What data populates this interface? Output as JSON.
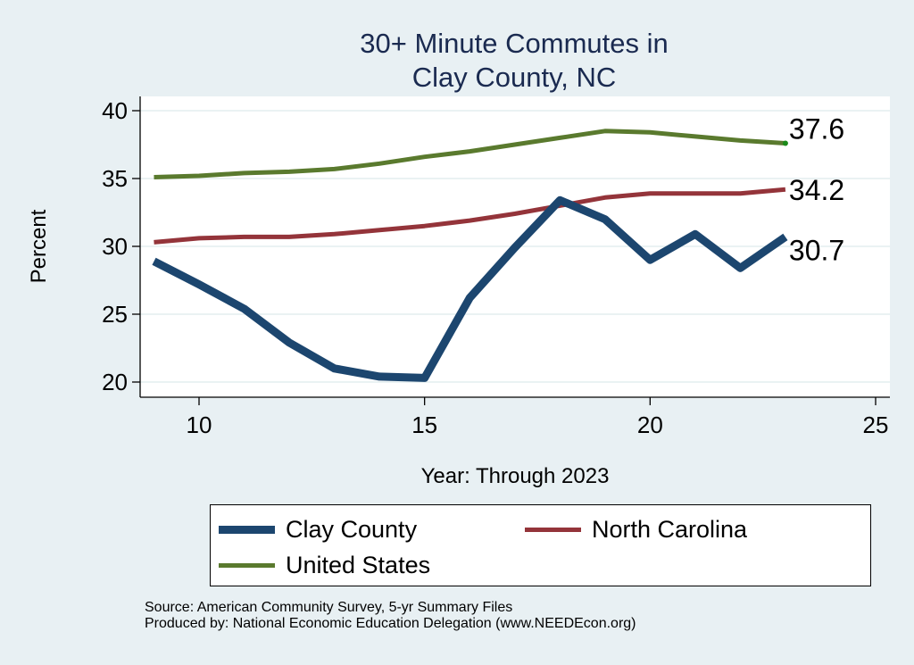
{
  "chart_data": {
    "type": "line",
    "title": [
      "30+ Minute Commutes in",
      "Clay County, NC"
    ],
    "xlabel": "Year: Through 2023",
    "ylabel": "Percent",
    "xlim": [
      8.7,
      25.3
    ],
    "ylim": [
      19,
      41
    ],
    "xticks": [
      10,
      15,
      20,
      25
    ],
    "yticks": [
      20,
      25,
      30,
      35,
      40
    ],
    "grid": "horizontal",
    "legend_position": "bottom",
    "x": [
      9,
      10,
      11,
      12,
      13,
      14,
      15,
      16,
      17,
      18,
      19,
      20,
      21,
      22,
      23
    ],
    "series": [
      {
        "name": "Clay County",
        "color": "#1c466f",
        "width": "thick",
        "values": [
          28.9,
          27.2,
          25.4,
          22.9,
          21.0,
          20.4,
          20.3,
          26.2,
          29.9,
          33.4,
          32.0,
          29.0,
          30.9,
          28.4,
          30.7
        ],
        "end_label": "30.7"
      },
      {
        "name": "North Carolina",
        "color": "#94343a",
        "width": "medium",
        "values": [
          30.3,
          30.6,
          30.7,
          30.7,
          30.9,
          31.2,
          31.5,
          31.9,
          32.4,
          33.0,
          33.6,
          33.9,
          33.9,
          33.9,
          34.2
        ],
        "end_label": "34.2"
      },
      {
        "name": "United States",
        "color": "#5a7a2e",
        "width": "medium",
        "values": [
          35.1,
          35.2,
          35.4,
          35.5,
          35.7,
          36.1,
          36.6,
          37.0,
          37.5,
          38.0,
          38.5,
          38.4,
          38.1,
          37.8,
          37.6
        ],
        "end_label": "37.6"
      }
    ],
    "notes": [
      "Source: American Community Survey, 5-yr Summary Files",
      "Produced by: National Economic Education Delegation (www.NEEDEcon.org)"
    ]
  }
}
